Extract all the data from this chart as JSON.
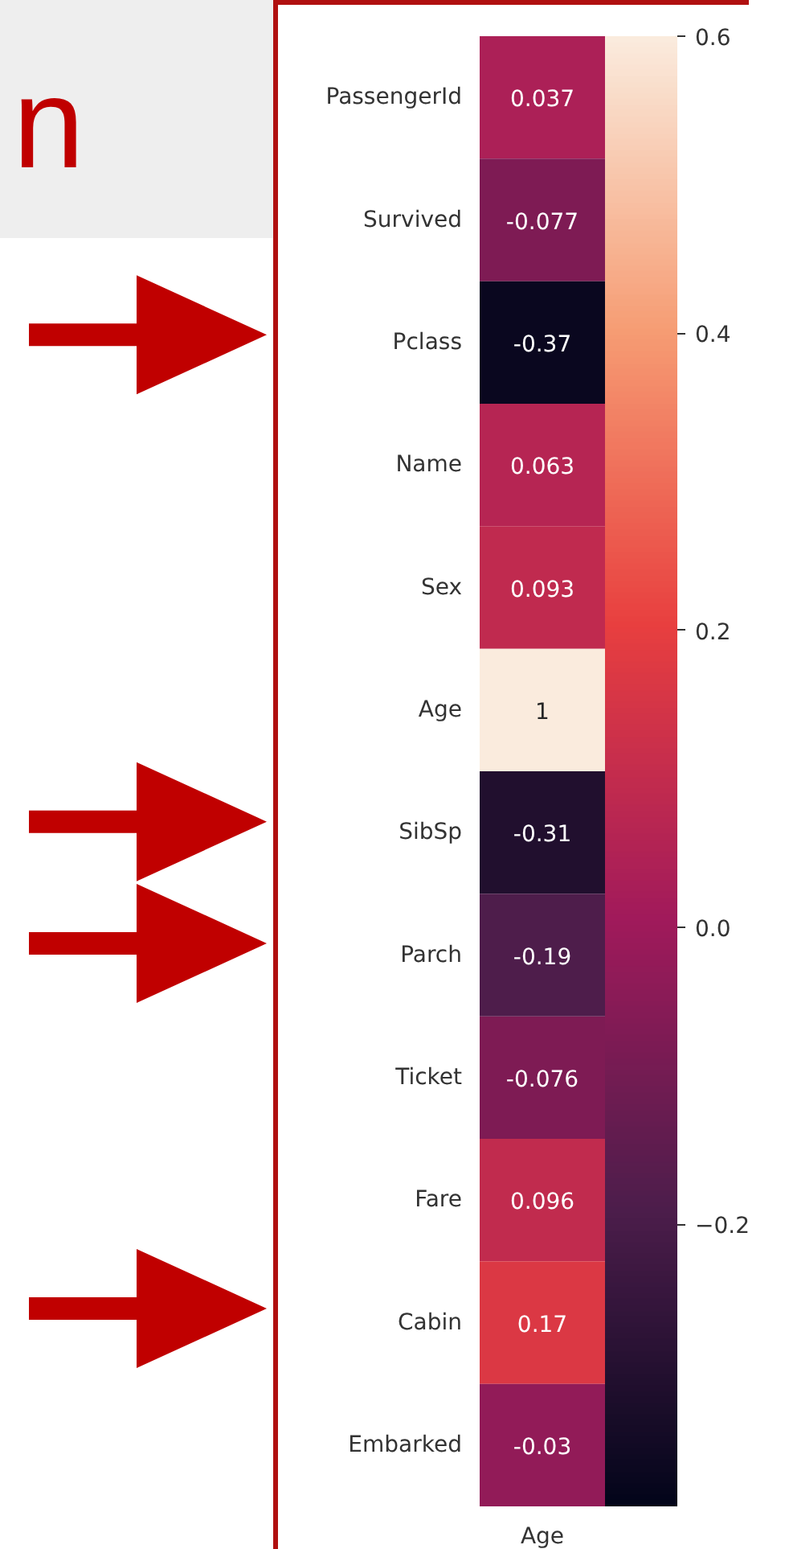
{
  "chart_data": {
    "type": "heatmap",
    "categories": [
      "Age"
    ],
    "y_categories": [
      "PassengerId",
      "Survived",
      "Pclass",
      "Name",
      "Sex",
      "Age",
      "SibSp",
      "Parch",
      "Ticket",
      "Fare",
      "Cabin",
      "Embarked"
    ],
    "cells": [
      [
        0.037
      ],
      [
        -0.077
      ],
      [
        -0.37
      ],
      [
        0.063
      ],
      [
        0.093
      ],
      [
        1
      ],
      [
        -0.31
      ],
      [
        -0.19
      ],
      [
        -0.076
      ],
      [
        0.096
      ],
      [
        0.17
      ],
      [
        -0.03
      ]
    ],
    "data_labels": true,
    "clim": [
      -0.39,
      0.6
    ],
    "cticks": [
      {
        "value": -0.2,
        "label": "−0.2"
      },
      {
        "value": 0.0,
        "label": "0.0"
      },
      {
        "value": 0.2,
        "label": "0.2"
      },
      {
        "value": 0.4,
        "label": "0.4"
      },
      {
        "value": 0.6,
        "label": "0.6"
      }
    ],
    "annotations": [
      "n",
      {
        "y": "Pclass"
      },
      {
        "y": "SibSp"
      },
      {
        "y": "Parch"
      },
      {
        "y": "Cabin"
      }
    ]
  }
}
